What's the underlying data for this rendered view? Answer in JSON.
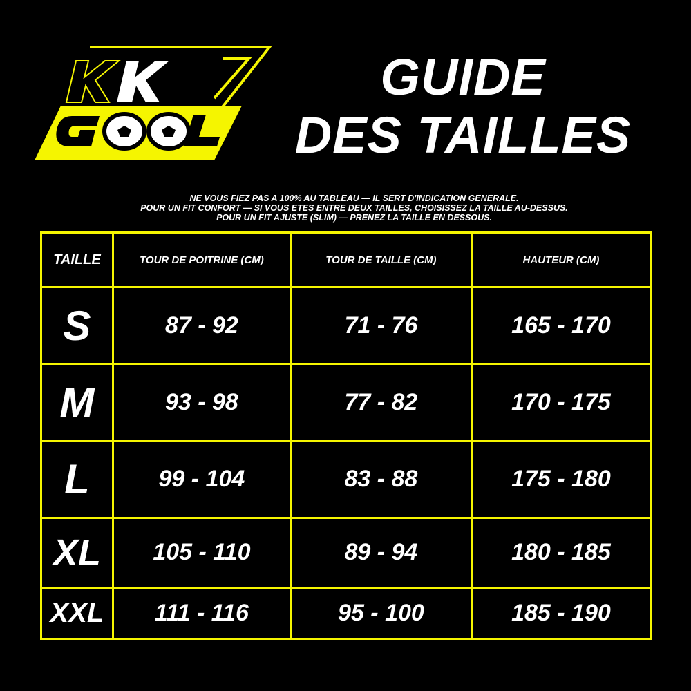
{
  "logo": {
    "line1": "KK",
    "line2": "GOOL",
    "accent": "#f5f500"
  },
  "title": {
    "line1": "GUIDE",
    "line2": "DES TAILLES"
  },
  "notes": [
    "NE VOUS FIEZ PAS A 100% AU TABLEAU — IL SERT D'INDICATION GENERALE.",
    "POUR UN FIT CONFORT — SI VOUS ETES ENTRE DEUX TAILLES, CHOISISSEZ LA TAILLE AU-DESSUS.",
    "POUR UN FIT AJUSTE (SLIM) — PRENEZ LA TAILLE EN DESSOUS."
  ],
  "table": {
    "headers": [
      "TAILLE",
      "TOUR DE POITRINE (CM)",
      "TOUR DE TAILLE (CM)",
      "HAUTEUR (CM)"
    ],
    "rows": [
      [
        "S",
        "87 - 92",
        "71 - 76",
        "165 - 170"
      ],
      [
        "M",
        "93 - 98",
        "77 - 82",
        "170 - 175"
      ],
      [
        "L",
        "99 - 104",
        "83 - 88",
        "175 - 180"
      ],
      [
        "XL",
        "105 - 110",
        "89 - 94",
        "180 - 185"
      ],
      [
        "XXL",
        "111 - 116",
        "95 - 100",
        "185 - 190"
      ]
    ]
  }
}
